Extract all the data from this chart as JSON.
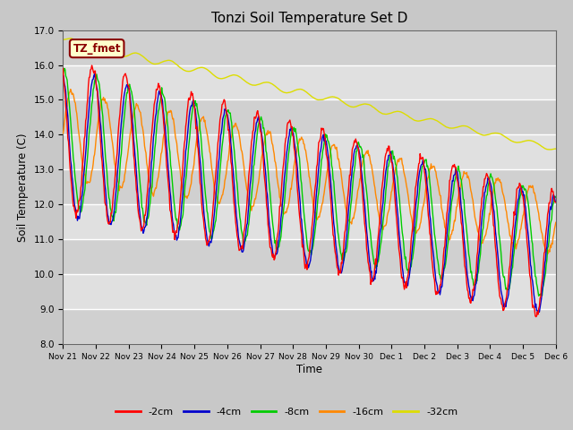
{
  "title": "Tonzi Soil Temperature Set D",
  "xlabel": "Time",
  "ylabel": "Soil Temperature (C)",
  "ylim": [
    8.0,
    17.0
  ],
  "yticks": [
    8.0,
    9.0,
    10.0,
    11.0,
    12.0,
    13.0,
    14.0,
    15.0,
    16.0,
    17.0
  ],
  "xtick_labels": [
    "Nov 21",
    "Nov 22",
    "Nov 23",
    "Nov 24",
    "Nov 25",
    "Nov 26",
    "Nov 27",
    "Nov 28",
    "Nov 29",
    "Nov 30",
    "Dec 1",
    "Dec 2",
    "Dec 3",
    "Dec 4",
    "Dec 5",
    "Dec 6"
  ],
  "legend_label": "TZ_fmet",
  "legend_box_color": "#ffffcc",
  "legend_box_edge": "#8B0000",
  "series_labels": [
    "-2cm",
    "-4cm",
    "-8cm",
    "-16cm",
    "-32cm"
  ],
  "series_colors": [
    "#ff0000",
    "#0000cc",
    "#00cc00",
    "#ff8800",
    "#dddd00"
  ],
  "n_days": 15,
  "n_points_per_day": 48
}
